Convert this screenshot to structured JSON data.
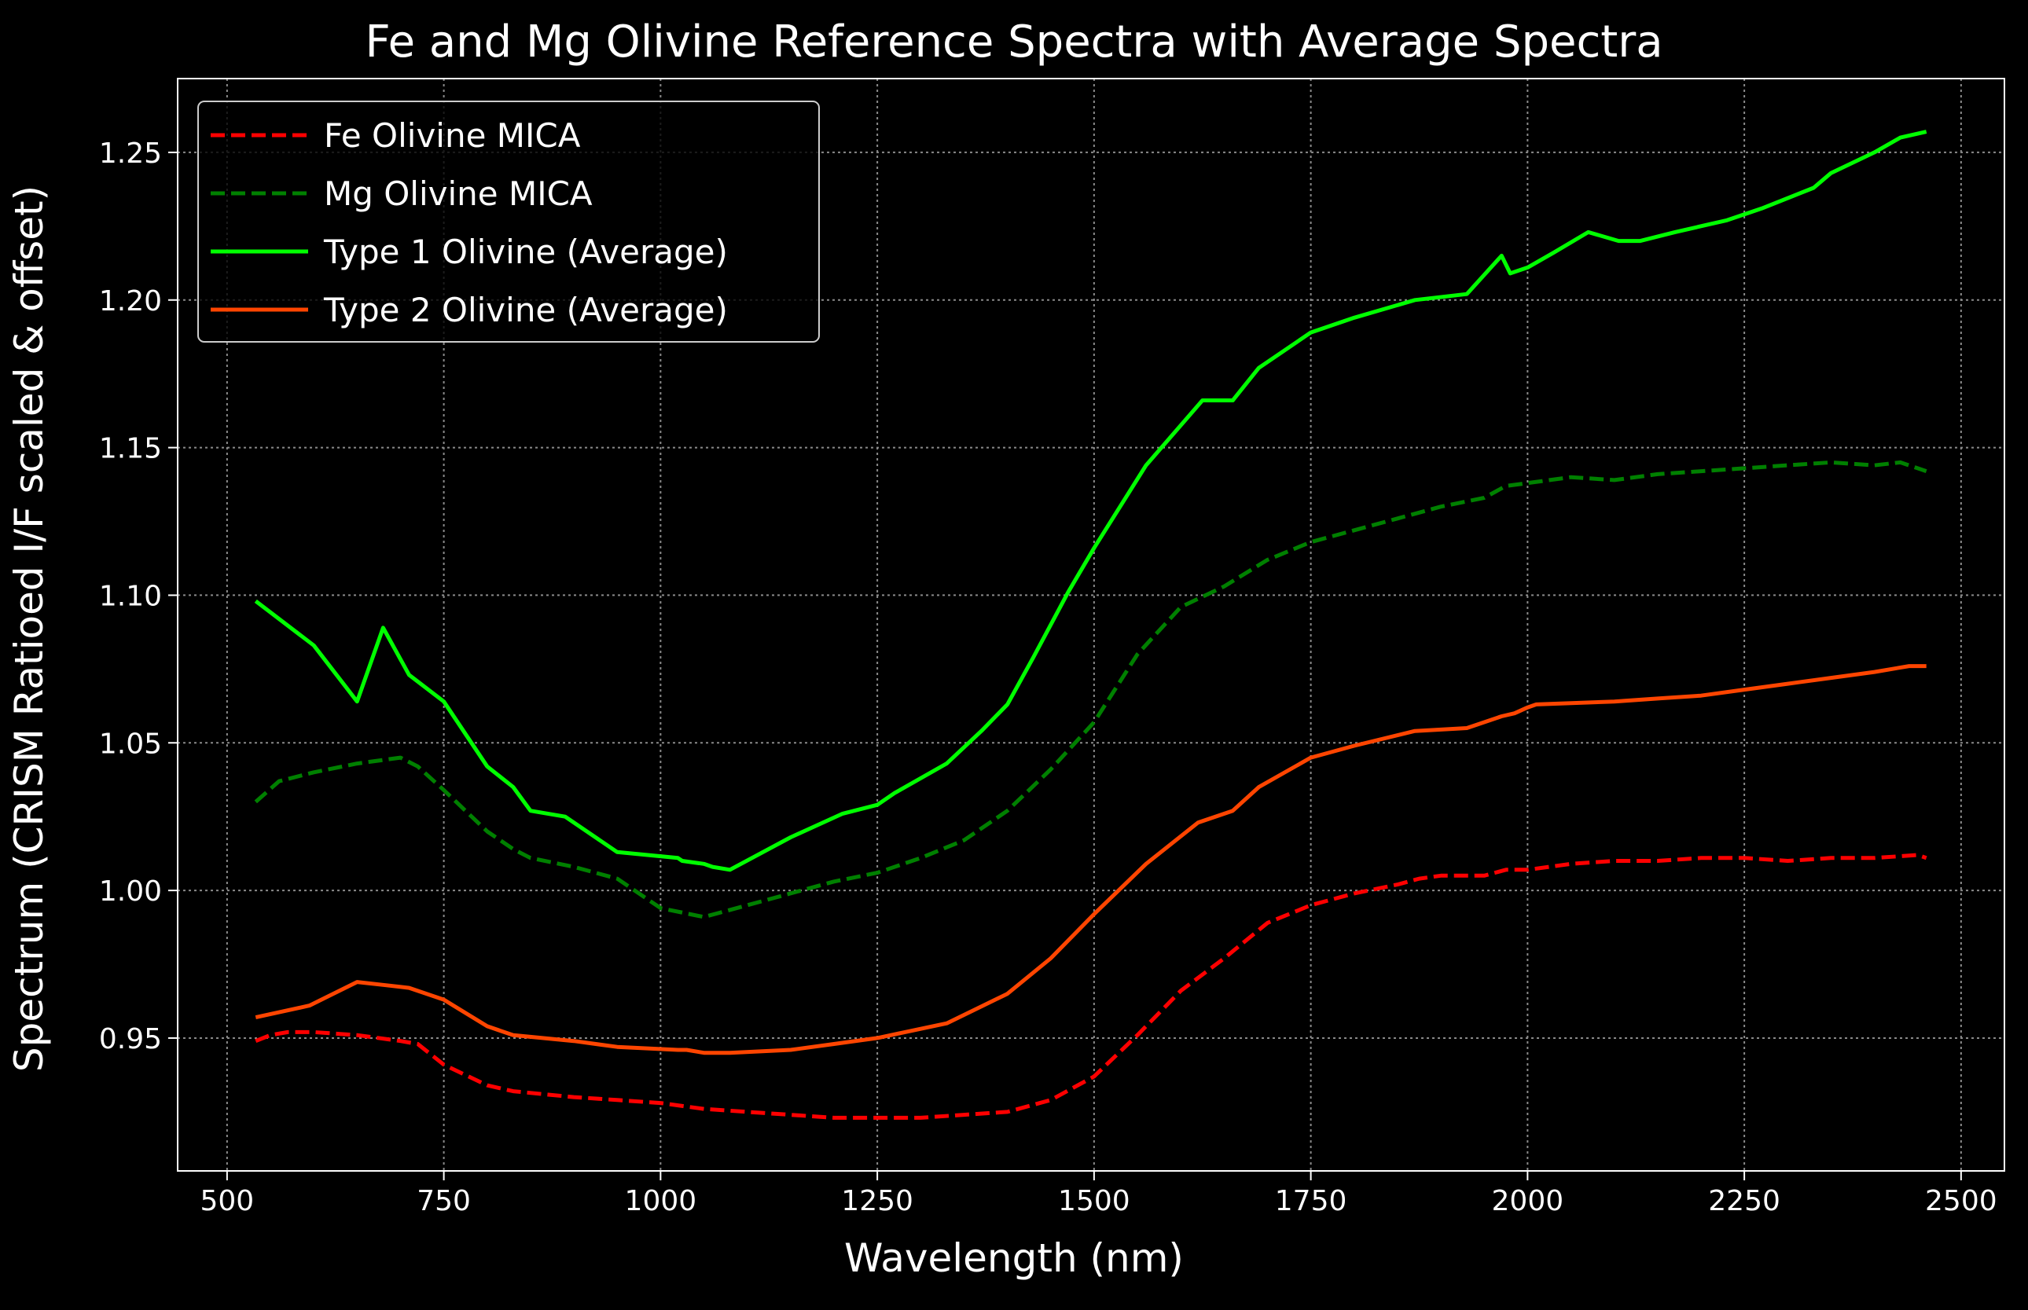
{
  "chart_data": {
    "type": "line",
    "title": "Fe and Mg Olivine Reference Spectra with Average Spectra",
    "xlabel": "Wavelength (nm)",
    "ylabel": "Spectrum (CRISM Ratioed I/F scaled & offset)",
    "xlim": [
      443,
      2550
    ],
    "ylim": [
      0.905,
      1.275
    ],
    "xticks": [
      500,
      750,
      1000,
      1250,
      1500,
      1750,
      2000,
      2250,
      2500
    ],
    "xtick_labels": [
      "500",
      "750",
      "1000",
      "1250",
      "1500",
      "1750",
      "2000",
      "2250",
      "2500"
    ],
    "yticks": [
      0.95,
      1.0,
      1.05,
      1.1,
      1.15,
      1.2,
      1.25
    ],
    "ytick_labels": [
      "0.95",
      "1.00",
      "1.05",
      "1.10",
      "1.15",
      "1.20",
      "1.25"
    ],
    "grid": true,
    "legend_position": "upper left",
    "colors": {
      "background": "#000000",
      "axes": "#ffffff",
      "grid": "#8a8a8a",
      "text": "#ffffff"
    },
    "series": [
      {
        "name": "Fe Olivine MICA",
        "color": "#ff0000",
        "style": "dashed",
        "x": [
          533,
          550,
          570,
          600,
          650,
          700,
          720,
          750,
          800,
          830,
          900,
          950,
          1000,
          1050,
          1100,
          1150,
          1200,
          1250,
          1300,
          1350,
          1400,
          1450,
          1500,
          1550,
          1600,
          1650,
          1700,
          1750,
          1800,
          1850,
          1875,
          1900,
          1950,
          1975,
          2000,
          2025,
          2050,
          2100,
          2150,
          2200,
          2250,
          2300,
          2350,
          2400,
          2450,
          2460
        ],
        "y": [
          0.949,
          0.951,
          0.952,
          0.952,
          0.951,
          0.949,
          0.948,
          0.941,
          0.934,
          0.932,
          0.93,
          0.929,
          0.928,
          0.926,
          0.925,
          0.924,
          0.923,
          0.923,
          0.923,
          0.924,
          0.925,
          0.929,
          0.937,
          0.951,
          0.966,
          0.977,
          0.989,
          0.995,
          0.999,
          1.002,
          1.004,
          1.005,
          1.005,
          1.007,
          1.007,
          1.008,
          1.009,
          1.01,
          1.01,
          1.011,
          1.011,
          1.01,
          1.011,
          1.011,
          1.012,
          1.011
        ]
      },
      {
        "name": "Mg Olivine MICA",
        "color": "#008000",
        "style": "dashed",
        "x": [
          533,
          560,
          600,
          650,
          700,
          720,
          750,
          800,
          830,
          850,
          900,
          950,
          1000,
          1050,
          1100,
          1150,
          1200,
          1250,
          1300,
          1350,
          1400,
          1450,
          1500,
          1550,
          1600,
          1650,
          1700,
          1750,
          1800,
          1850,
          1900,
          1950,
          1975,
          2000,
          2050,
          2100,
          2150,
          2200,
          2250,
          2300,
          2350,
          2400,
          2430,
          2460
        ],
        "y": [
          1.03,
          1.037,
          1.04,
          1.043,
          1.045,
          1.042,
          1.034,
          1.02,
          1.014,
          1.011,
          1.008,
          1.004,
          0.994,
          0.991,
          0.995,
          0.999,
          1.003,
          1.006,
          1.011,
          1.017,
          1.027,
          1.041,
          1.057,
          1.08,
          1.096,
          1.103,
          1.112,
          1.118,
          1.122,
          1.126,
          1.13,
          1.133,
          1.137,
          1.138,
          1.14,
          1.139,
          1.141,
          1.142,
          1.143,
          1.144,
          1.145,
          1.144,
          1.145,
          1.142
        ]
      },
      {
        "name": "Type 1 Olivine (Average)",
        "color": "#00ff00",
        "style": "solid",
        "x": [
          533,
          600,
          650,
          680,
          710,
          750,
          800,
          830,
          850,
          890,
          950,
          1020,
          1025,
          1050,
          1060,
          1080,
          1150,
          1210,
          1250,
          1270,
          1330,
          1370,
          1400,
          1430,
          1470,
          1500,
          1560,
          1625,
          1660,
          1690,
          1750,
          1800,
          1870,
          1930,
          1970,
          1980,
          2000,
          2030,
          2070,
          2105,
          2130,
          2170,
          2230,
          2270,
          2330,
          2350,
          2400,
          2430,
          2460
        ],
        "y": [
          1.098,
          1.083,
          1.064,
          1.089,
          1.073,
          1.064,
          1.042,
          1.035,
          1.027,
          1.025,
          1.013,
          1.011,
          1.01,
          1.009,
          1.008,
          1.007,
          1.018,
          1.026,
          1.029,
          1.033,
          1.043,
          1.054,
          1.063,
          1.079,
          1.101,
          1.116,
          1.144,
          1.166,
          1.166,
          1.177,
          1.189,
          1.194,
          1.2,
          1.202,
          1.215,
          1.209,
          1.211,
          1.216,
          1.223,
          1.22,
          1.22,
          1.223,
          1.227,
          1.231,
          1.238,
          1.243,
          1.25,
          1.255,
          1.257
        ]
      },
      {
        "name": "Type 2 Olivine (Average)",
        "color": "#ff4500",
        "style": "solid",
        "x": [
          533,
          595,
          650,
          680,
          710,
          750,
          800,
          830,
          900,
          950,
          1020,
          1030,
          1050,
          1080,
          1150,
          1200,
          1250,
          1330,
          1400,
          1450,
          1500,
          1560,
          1620,
          1660,
          1690,
          1750,
          1800,
          1870,
          1930,
          1970,
          1985,
          2000,
          2010,
          2100,
          2150,
          2200,
          2250,
          2300,
          2350,
          2400,
          2440,
          2460
        ],
        "y": [
          0.957,
          0.961,
          0.969,
          0.968,
          0.967,
          0.963,
          0.954,
          0.951,
          0.949,
          0.947,
          0.946,
          0.946,
          0.945,
          0.945,
          0.946,
          0.948,
          0.95,
          0.955,
          0.965,
          0.977,
          0.992,
          1.009,
          1.023,
          1.027,
          1.035,
          1.045,
          1.049,
          1.054,
          1.055,
          1.059,
          1.06,
          1.062,
          1.063,
          1.064,
          1.065,
          1.066,
          1.068,
          1.07,
          1.072,
          1.074,
          1.076,
          1.076
        ]
      }
    ]
  }
}
